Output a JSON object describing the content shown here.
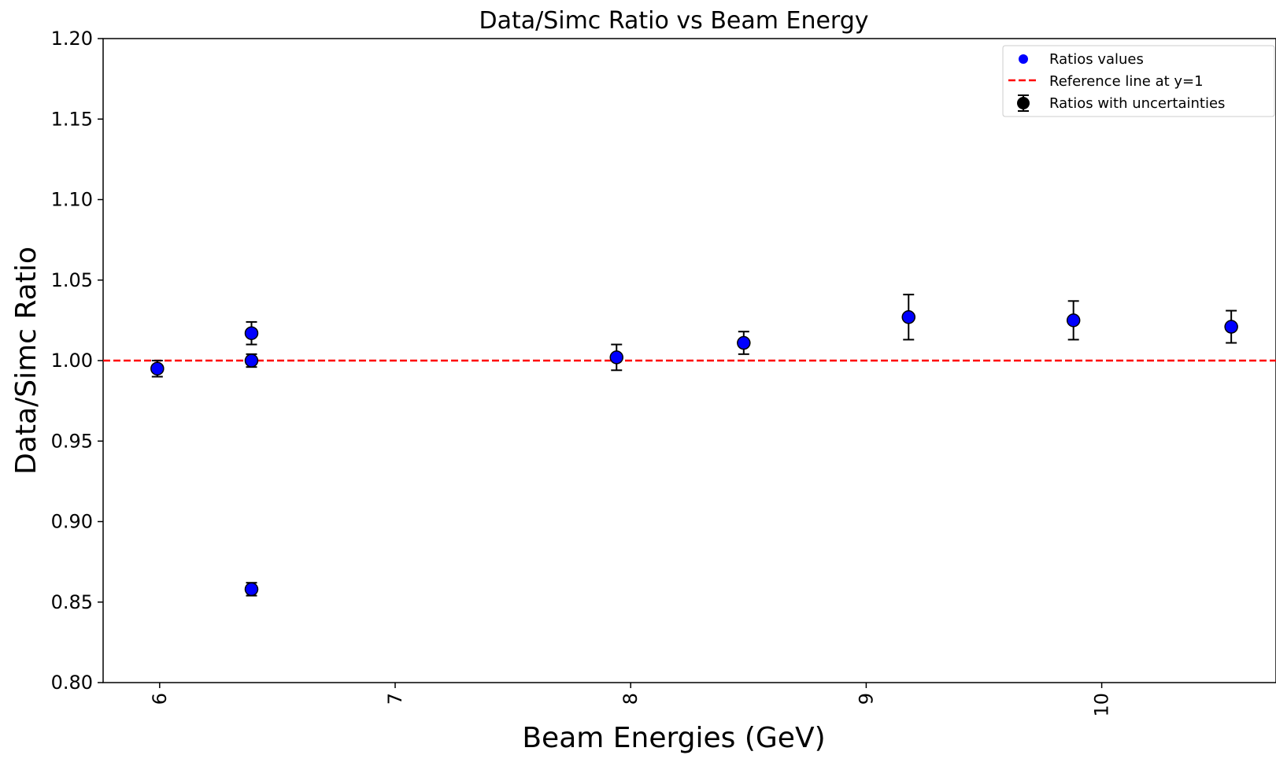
{
  "chart_data": {
    "type": "scatter",
    "title": "Data/Simc Ratio vs Beam Energy",
    "xlabel": "Beam Energies (GeV)",
    "ylabel": "Data/Simc Ratio",
    "xlim": [
      5.76,
      10.74
    ],
    "ylim": [
      0.8,
      1.2
    ],
    "xticks": [
      6,
      7,
      8,
      9,
      10
    ],
    "xtick_labels": [
      "6",
      "7",
      "8",
      "9",
      "10"
    ],
    "yticks": [
      0.8,
      0.85,
      0.9,
      0.95,
      1.0,
      1.05,
      1.1,
      1.15,
      1.2
    ],
    "ytick_labels": [
      "0.80",
      "0.85",
      "0.90",
      "0.95",
      "1.00",
      "1.05",
      "1.10",
      "1.15",
      "1.20"
    ],
    "grid": false,
    "legend_position": "top-right",
    "reference_line": {
      "y": 1.0,
      "color": "#ff0000",
      "style": "dashed"
    },
    "points": [
      {
        "x": 5.99,
        "y": 0.995,
        "err": 0.005
      },
      {
        "x": 6.39,
        "y": 1.017,
        "err": 0.007
      },
      {
        "x": 6.39,
        "y": 1.0,
        "err": 0.004
      },
      {
        "x": 6.39,
        "y": 0.858,
        "err": 0.004
      },
      {
        "x": 7.94,
        "y": 1.002,
        "err": 0.008
      },
      {
        "x": 8.48,
        "y": 1.011,
        "err": 0.007
      },
      {
        "x": 9.18,
        "y": 1.027,
        "err": 0.014
      },
      {
        "x": 9.88,
        "y": 1.025,
        "err": 0.012
      },
      {
        "x": 10.55,
        "y": 1.021,
        "err": 0.01
      }
    ],
    "legend": [
      {
        "key": "points",
        "label": "Ratios values"
      },
      {
        "key": "line",
        "label": "Reference line at y=1"
      },
      {
        "key": "errorbar",
        "label": "Ratios with uncertainties"
      }
    ],
    "colors": {
      "marker_fill": "#0000ff",
      "marker_edge": "#000000",
      "errorbar": "#000000"
    }
  }
}
